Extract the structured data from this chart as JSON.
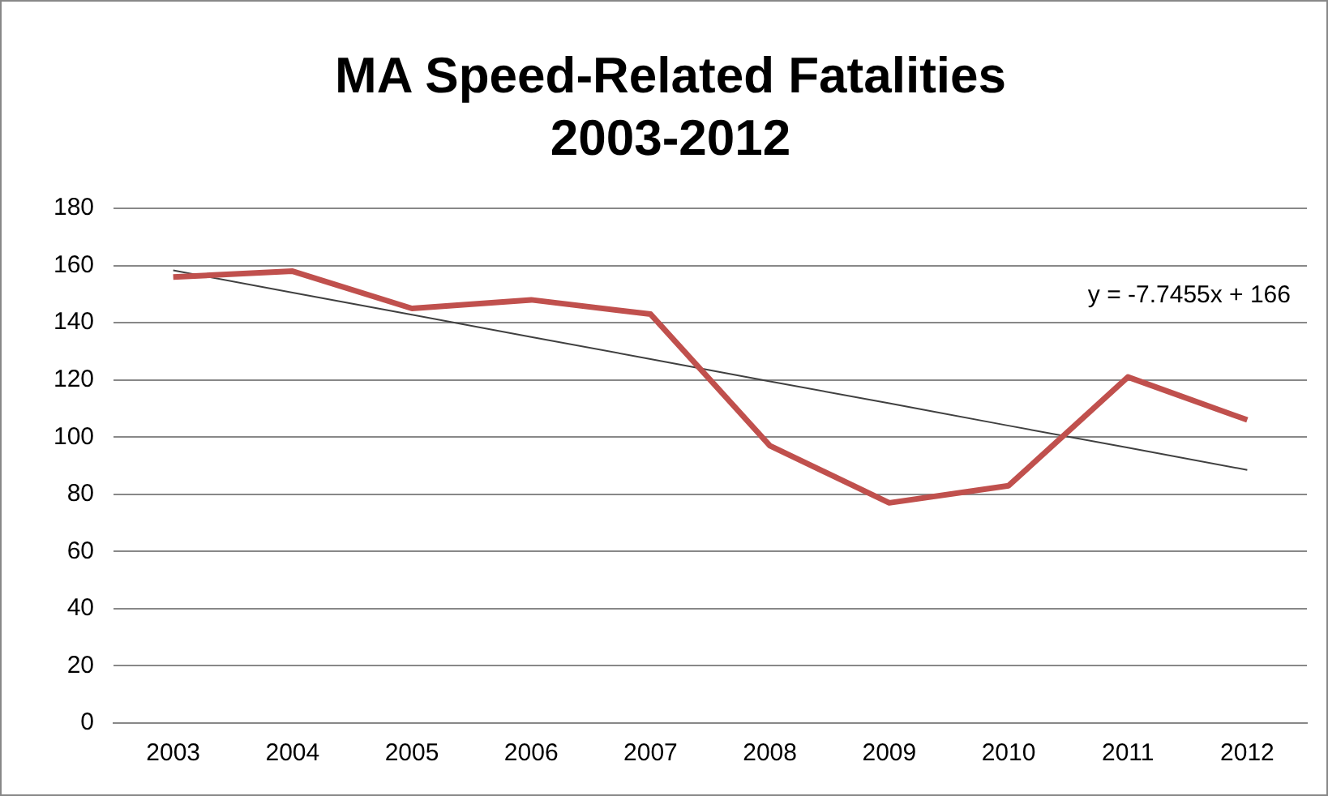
{
  "chart_data": {
    "type": "line",
    "title": "MA Speed-Related Fatalities\n2003-2012",
    "categories": [
      "2003",
      "2004",
      "2005",
      "2006",
      "2007",
      "2008",
      "2009",
      "2010",
      "2011",
      "2012"
    ],
    "series": [
      {
        "color": "#c0504d",
        "values": [
          156,
          158,
          145,
          148,
          143,
          97,
          77,
          83,
          121,
          106
        ]
      },
      {
        "type": "line",
        "color": "#404040",
        "values": [
          158.3,
          150.5,
          142.8,
          135.0,
          127.3,
          119.5,
          111.8,
          104.0,
          96.3,
          88.5
        ]
      }
    ],
    "ylim": [
      0,
      180
    ],
    "yticks": [
      0,
      20,
      40,
      60,
      80,
      100,
      120,
      140,
      160,
      180
    ],
    "grid": "y",
    "legend": false,
    "marker": "none",
    "annotations": [
      "y = -7.7455x + 166"
    ]
  }
}
